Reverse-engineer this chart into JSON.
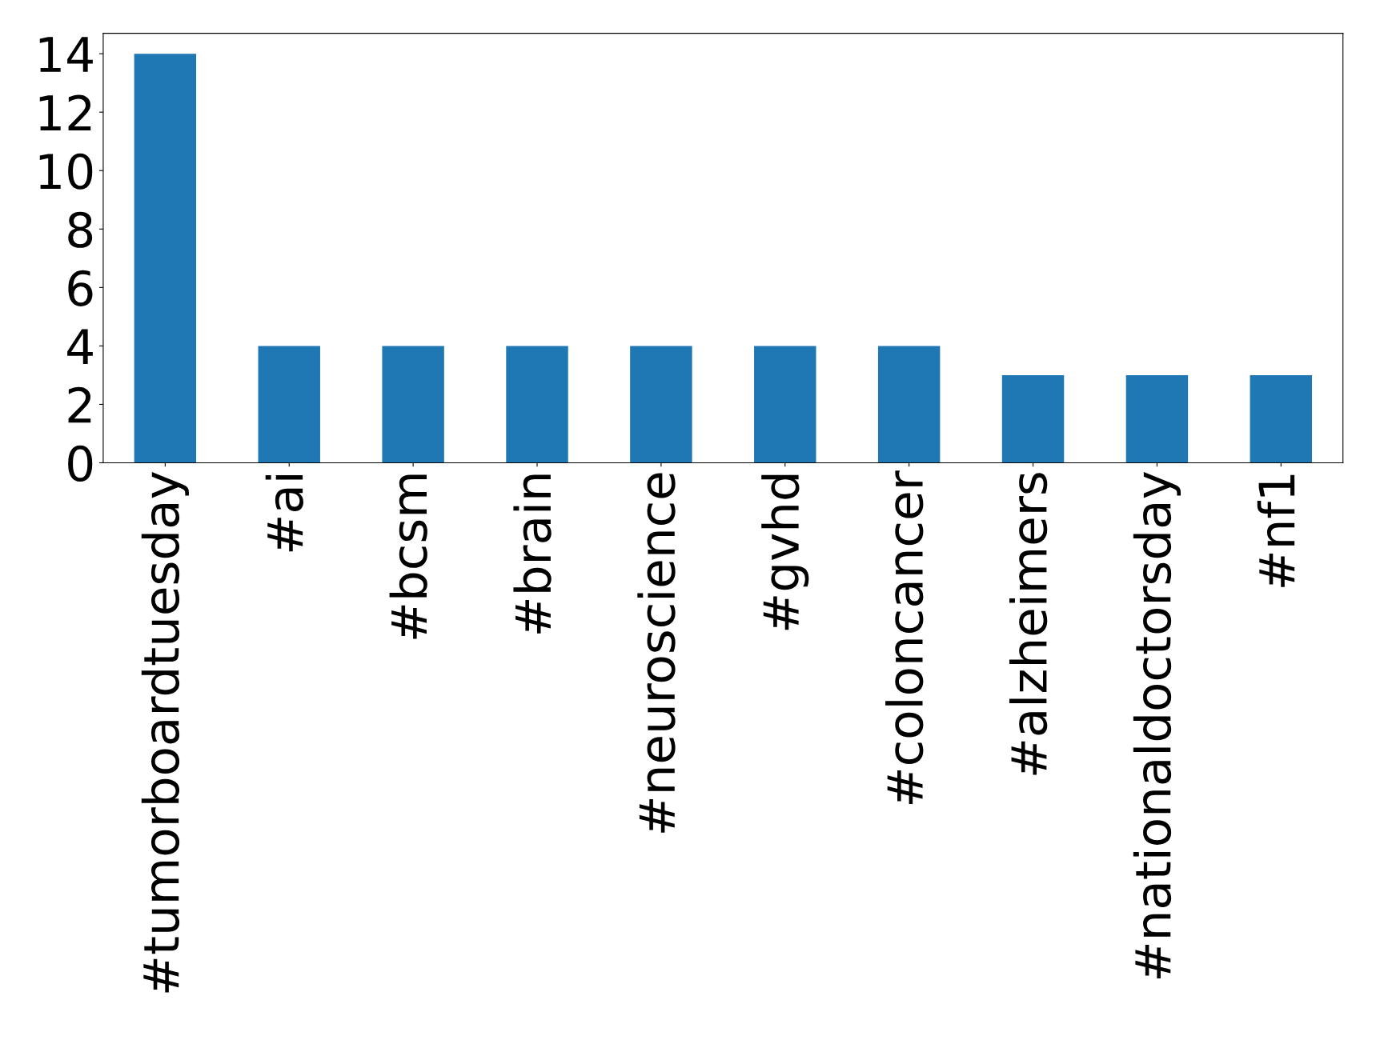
{
  "chart_data": {
    "type": "bar",
    "categories": [
      "#tumorboardtuesday",
      "#ai",
      "#bcsm",
      "#brain",
      "#neuroscience",
      "#gvhd",
      "#coloncancer",
      "#alzheimers",
      "#nationaldoctorsday",
      "#nf1"
    ],
    "values": [
      14,
      4,
      4,
      4,
      4,
      4,
      4,
      3,
      3,
      3
    ],
    "color": "#1f77b4",
    "ylim": [
      0,
      14.7
    ],
    "yticks": [
      0,
      2,
      4,
      6,
      8,
      10,
      12,
      14
    ],
    "grid": false
  }
}
